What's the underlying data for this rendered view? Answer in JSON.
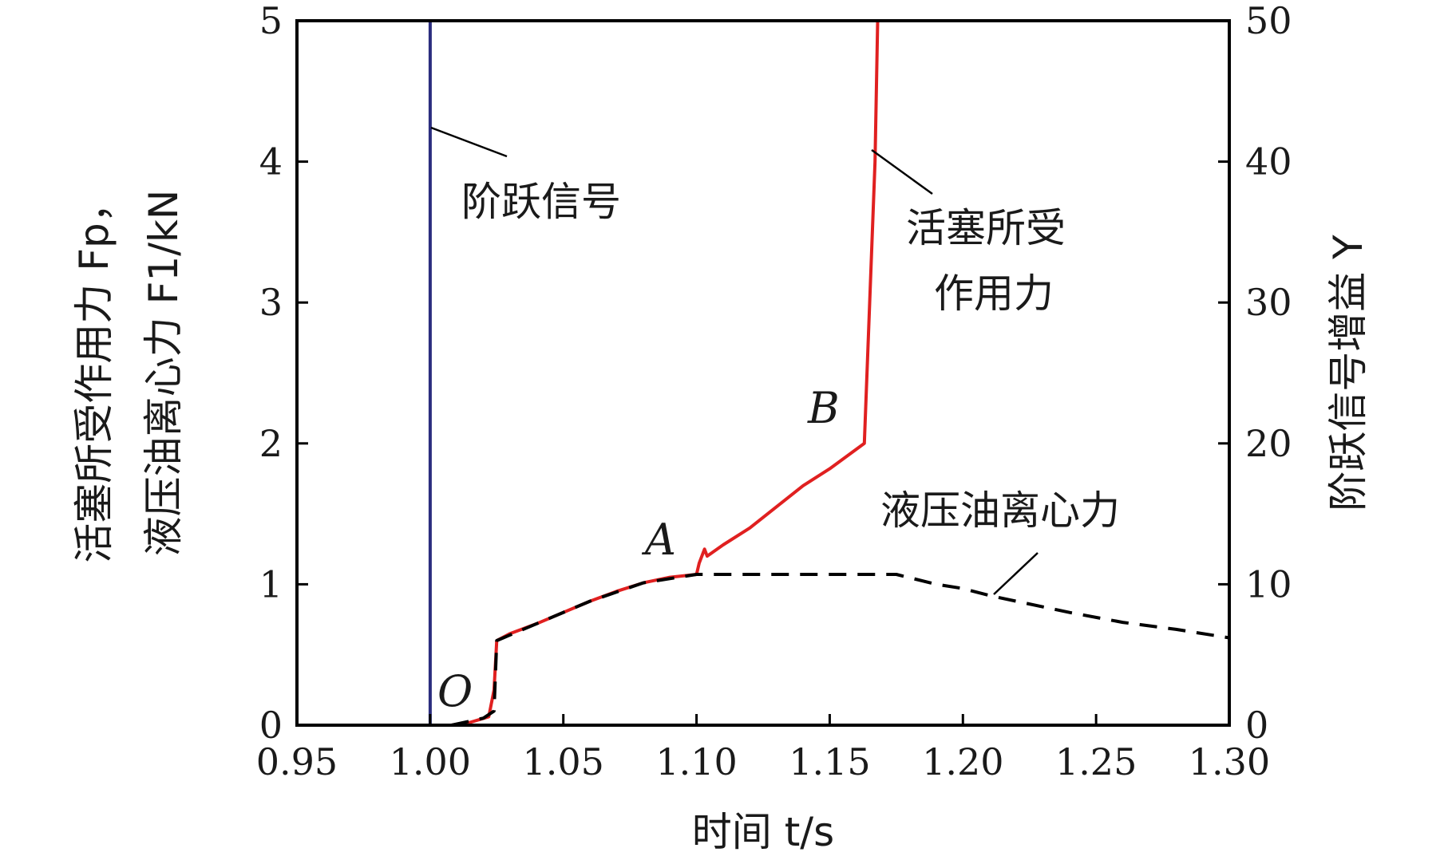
{
  "chart_data": {
    "type": "line",
    "x": {
      "label": "时间 t/s",
      "lim": [
        0.95,
        1.3
      ],
      "ticks": [
        0.95,
        1.0,
        1.05,
        1.1,
        1.15,
        1.2,
        1.25,
        1.3
      ],
      "tick_labels": [
        "0.95",
        "1.00",
        "1.05",
        "1.10",
        "1.15",
        "1.20",
        "1.25",
        "1.30"
      ]
    },
    "y_left": {
      "label_line1": "活塞所受作用力 Fp，",
      "label_line2": "液压油离心力 F1/kN",
      "lim": [
        0,
        5
      ],
      "ticks": [
        0,
        1,
        2,
        3,
        4,
        5
      ],
      "tick_labels": [
        "0",
        "1",
        "2",
        "3",
        "4",
        "5"
      ]
    },
    "y_right": {
      "label": "阶跃信号增益 Y",
      "lim": [
        0,
        50
      ],
      "ticks": [
        0,
        10,
        20,
        30,
        40,
        50
      ],
      "tick_labels": [
        "0",
        "10",
        "20",
        "30",
        "40",
        "50"
      ]
    },
    "series": [
      {
        "name": "阶跃信号",
        "axis": "right",
        "color": "#2b2d7e",
        "style": "solid",
        "points": [
          [
            0.95,
            0
          ],
          [
            1.0,
            0
          ],
          [
            1.0,
            50
          ],
          [
            1.3,
            50
          ]
        ]
      },
      {
        "name": "活塞所受作用力",
        "axis": "left",
        "color": "#e02020",
        "style": "solid",
        "points": [
          [
            1.008,
            0
          ],
          [
            1.015,
            0.02
          ],
          [
            1.022,
            0.06
          ],
          [
            1.024,
            0.25
          ],
          [
            1.025,
            0.6
          ],
          [
            1.03,
            0.65
          ],
          [
            1.04,
            0.72
          ],
          [
            1.05,
            0.8
          ],
          [
            1.06,
            0.88
          ],
          [
            1.07,
            0.95
          ],
          [
            1.08,
            1.01
          ],
          [
            1.09,
            1.05
          ],
          [
            1.1,
            1.07
          ],
          [
            1.101,
            1.15
          ],
          [
            1.103,
            1.25
          ],
          [
            1.104,
            1.2
          ],
          [
            1.11,
            1.28
          ],
          [
            1.12,
            1.4
          ],
          [
            1.13,
            1.55
          ],
          [
            1.14,
            1.7
          ],
          [
            1.15,
            1.82
          ],
          [
            1.163,
            2.0
          ],
          [
            1.165,
            3.0
          ],
          [
            1.167,
            4.0
          ],
          [
            1.168,
            5.0
          ]
        ]
      },
      {
        "name": "液压油离心力",
        "axis": "left",
        "color": "#000000",
        "style": "dashed",
        "points": [
          [
            1.008,
            0
          ],
          [
            1.02,
            0.05
          ],
          [
            1.024,
            0.1
          ],
          [
            1.025,
            0.6
          ],
          [
            1.04,
            0.72
          ],
          [
            1.06,
            0.88
          ],
          [
            1.08,
            1.01
          ],
          [
            1.1,
            1.07
          ],
          [
            1.12,
            1.07
          ],
          [
            1.14,
            1.07
          ],
          [
            1.16,
            1.07
          ],
          [
            1.175,
            1.07
          ],
          [
            1.19,
            1.0
          ],
          [
            1.2,
            0.97
          ],
          [
            1.21,
            0.92
          ],
          [
            1.22,
            0.88
          ],
          [
            1.24,
            0.8
          ],
          [
            1.26,
            0.73
          ],
          [
            1.28,
            0.68
          ],
          [
            1.3,
            0.62
          ]
        ]
      }
    ],
    "annotations": {
      "step_signal": "阶跃信号",
      "piston_force_line1": "活塞所受",
      "piston_force_line2": "作用力",
      "oil_force": "液压油离心力",
      "point_O": "O",
      "point_A": "A",
      "point_B": "B"
    }
  }
}
